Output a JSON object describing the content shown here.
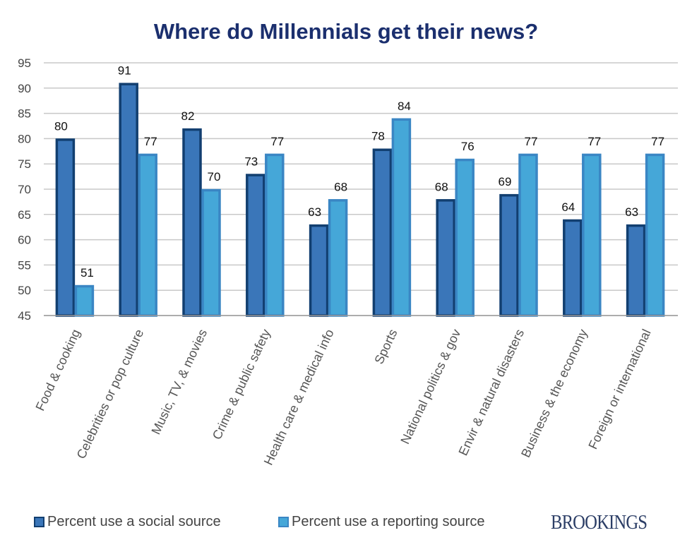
{
  "chart_data": {
    "type": "bar",
    "title": "Where do Millennials  get their news?",
    "categories": [
      "Food & cooking",
      "Celebrities or pop culture",
      "Music, TV, & movies",
      "Crime & public safety",
      "Health care & medical info",
      "Sports",
      "National politics & gov",
      "Envir & natural disasters",
      "Business & the economy",
      "Foreign or international"
    ],
    "series": [
      {
        "name": "Percent use a social source",
        "values": [
          80,
          91,
          82,
          73,
          63,
          78,
          68,
          69,
          64,
          63
        ],
        "color": "#3a76b9",
        "border": "#123f70"
      },
      {
        "name": "Percent use a reporting source",
        "values": [
          51,
          77,
          70,
          77,
          68,
          84,
          76,
          77,
          77,
          77
        ],
        "color": "#45a7d8",
        "border": "#3a86c4"
      }
    ],
    "ylim": [
      45,
      95
    ],
    "yticks": [
      45,
      50,
      55,
      60,
      65,
      70,
      75,
      80,
      85,
      90,
      95
    ],
    "grid": true,
    "legend": "bottom-left",
    "xlabel": "",
    "ylabel": ""
  },
  "brand": "BROOKINGS"
}
